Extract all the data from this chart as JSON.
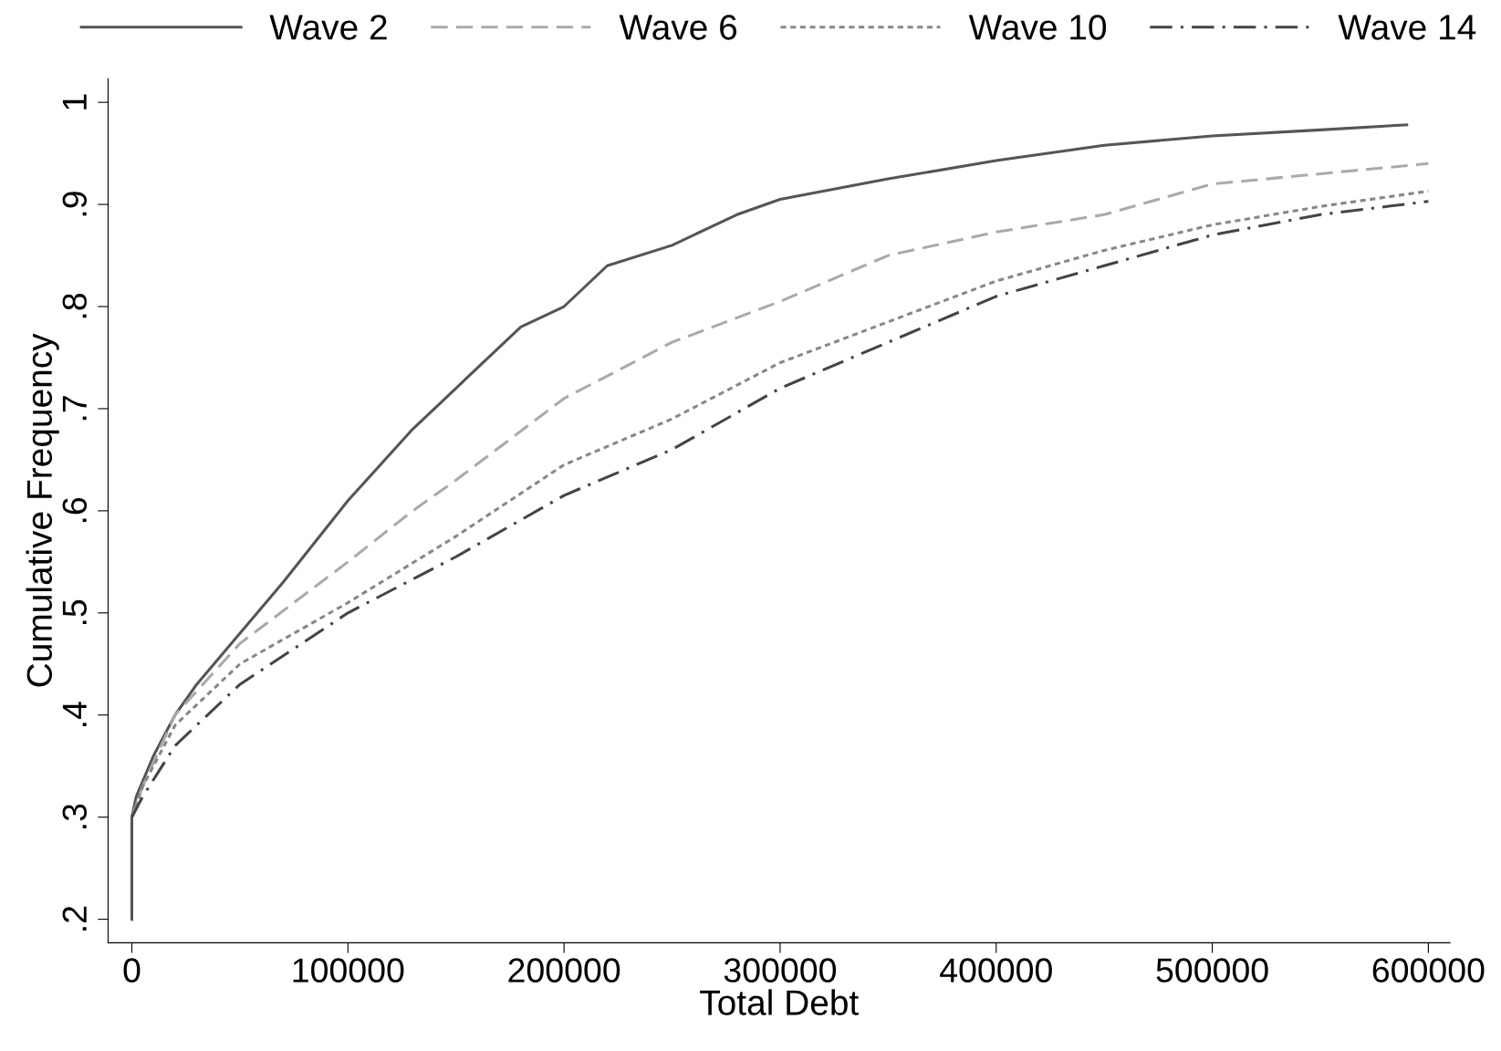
{
  "chart_data": {
    "type": "line",
    "xlabel": "Total Debt",
    "ylabel": "Cumulative Frequency",
    "legend": "top",
    "grid": false,
    "xlim": [
      -11000,
      610000
    ],
    "ylim": [
      0.177,
      1.023
    ],
    "xticks": [
      0,
      100000,
      200000,
      300000,
      400000,
      500000,
      600000
    ],
    "yticks": [
      {
        "value": 0.2,
        "label": ".2"
      },
      {
        "value": 0.3,
        "label": ".3"
      },
      {
        "value": 0.4,
        "label": ".4"
      },
      {
        "value": 0.5,
        "label": ".5"
      },
      {
        "value": 0.6,
        "label": ".6"
      },
      {
        "value": 0.7,
        "label": ".7"
      },
      {
        "value": 0.8,
        "label": ".8"
      },
      {
        "value": 0.9,
        "label": ".9"
      },
      {
        "value": 1,
        "label": "1"
      }
    ],
    "series": [
      {
        "name": "Wave 2",
        "color": "#555555",
        "line_style": "solid",
        "x": [
          0,
          0,
          2000,
          10000,
          20000,
          30000,
          50000,
          70000,
          100000,
          130000,
          150000,
          180000,
          200000,
          220000,
          250000,
          280000,
          300000,
          350000,
          400000,
          450000,
          500000,
          550000,
          590000
        ],
        "values": [
          0.2,
          0.3,
          0.32,
          0.36,
          0.4,
          0.43,
          0.48,
          0.53,
          0.61,
          0.68,
          0.72,
          0.78,
          0.8,
          0.84,
          0.86,
          0.89,
          0.905,
          0.925,
          0.943,
          0.958,
          0.967,
          0.973,
          0.978
        ]
      },
      {
        "name": "Wave 6",
        "color": "#aaaaaa",
        "line_style": "dashed",
        "x": [
          0,
          5000,
          20000,
          50000,
          100000,
          130000,
          150000,
          200000,
          250000,
          300000,
          350000,
          400000,
          450000,
          500000,
          550000,
          600000
        ],
        "values": [
          0.3,
          0.33,
          0.4,
          0.47,
          0.55,
          0.6,
          0.63,
          0.71,
          0.765,
          0.805,
          0.85,
          0.873,
          0.89,
          0.92,
          0.93,
          0.94
        ]
      },
      {
        "name": "Wave 10",
        "color": "#888888",
        "line_style": "dotted",
        "x": [
          0,
          5000,
          20000,
          50000,
          100000,
          150000,
          200000,
          250000,
          300000,
          350000,
          400000,
          450000,
          500000,
          550000,
          600000
        ],
        "values": [
          0.3,
          0.33,
          0.39,
          0.45,
          0.51,
          0.575,
          0.645,
          0.69,
          0.745,
          0.785,
          0.825,
          0.855,
          0.88,
          0.898,
          0.913
        ]
      },
      {
        "name": "Wave 14",
        "color": "#444444",
        "line_style": "dashdot",
        "x": [
          0,
          5000,
          20000,
          50000,
          100000,
          150000,
          200000,
          250000,
          300000,
          350000,
          400000,
          450000,
          500000,
          550000,
          600000
        ],
        "values": [
          0.3,
          0.32,
          0.37,
          0.43,
          0.5,
          0.555,
          0.615,
          0.66,
          0.72,
          0.765,
          0.81,
          0.84,
          0.87,
          0.89,
          0.903
        ]
      }
    ]
  }
}
